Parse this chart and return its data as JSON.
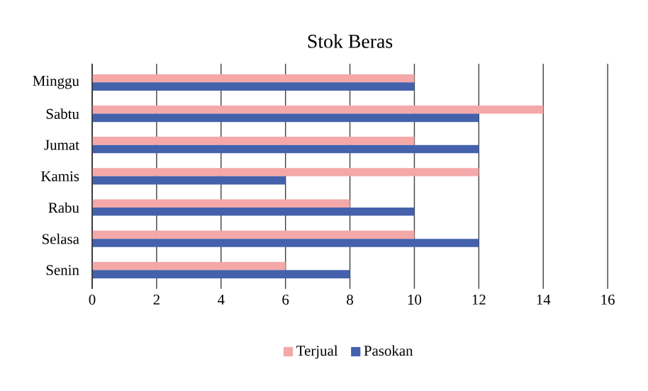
{
  "chart_data": {
    "type": "bar",
    "orientation": "horizontal",
    "title": "Stok Beras",
    "categories": [
      "Minggu",
      "Sabtu",
      "Jumat",
      "Kamis",
      "Rabu",
      "Selasa",
      "Senin"
    ],
    "series": [
      {
        "name": "Terjual",
        "color": "#f4a8a8",
        "values": [
          10,
          14,
          10,
          12,
          8,
          10,
          6
        ]
      },
      {
        "name": "Pasokan",
        "color": "#4461ab",
        "values": [
          10,
          12,
          12,
          6,
          10,
          12,
          8
        ]
      }
    ],
    "xlim": [
      0,
      16
    ],
    "xticks": [
      0,
      2,
      4,
      6,
      8,
      10,
      12,
      14,
      16
    ],
    "grid": "x",
    "legend": "bottom"
  }
}
